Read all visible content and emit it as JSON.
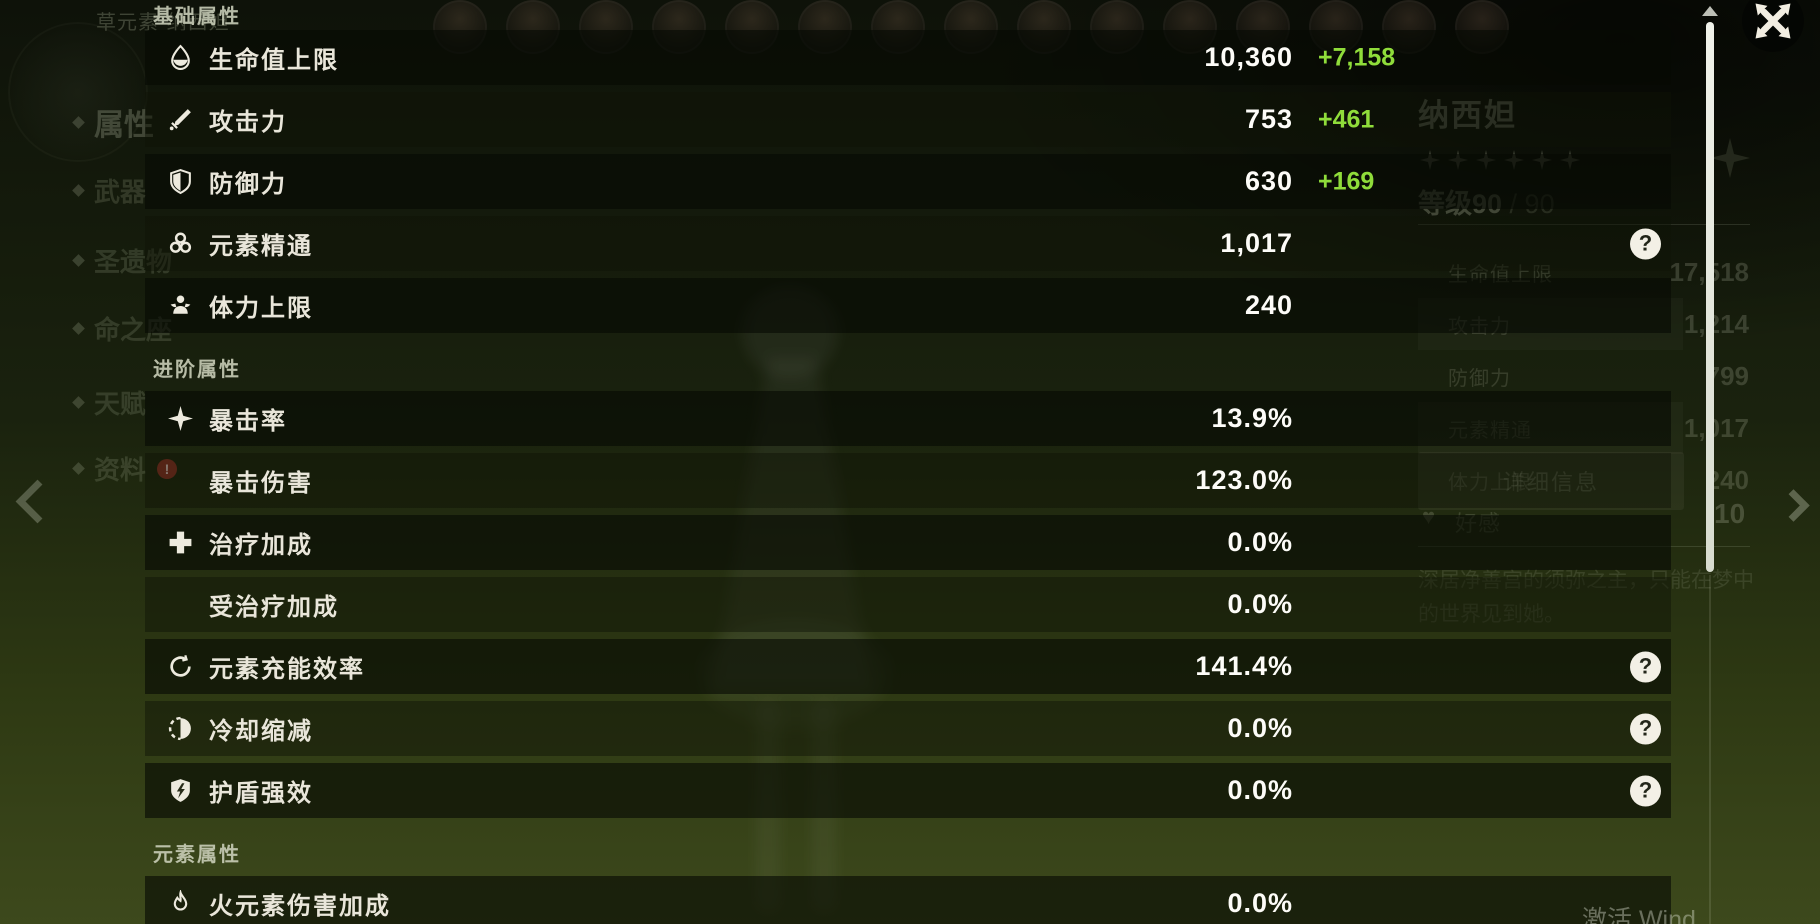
{
  "window": {
    "watermark": "激活 Wind"
  },
  "colors": {
    "bonus_green": "#8fdc3a"
  },
  "attributes_panel": {
    "sections": [
      {
        "title": "基础属性",
        "rows": [
          {
            "icon": "hp-icon",
            "label": "生命值上限",
            "value": "10,360",
            "bonus": "+7,158"
          },
          {
            "icon": "atk-icon",
            "label": "攻击力",
            "value": "753",
            "bonus": "+461"
          },
          {
            "icon": "def-icon",
            "label": "防御力",
            "value": "630",
            "bonus": "+169"
          },
          {
            "icon": "elemental-mastery-icon",
            "label": "元素精通",
            "value": "1,017",
            "help": true
          },
          {
            "icon": "stamina-icon",
            "label": "体力上限",
            "value": "240"
          }
        ]
      },
      {
        "title": "进阶属性",
        "rows": [
          {
            "icon": "crit-rate-icon",
            "label": "暴击率",
            "value": "13.9%"
          },
          {
            "icon": null,
            "label": "暴击伤害",
            "value": "123.0%"
          },
          {
            "icon": "healing-bonus-icon",
            "label": "治疗加成",
            "value": "0.0%"
          },
          {
            "icon": null,
            "label": "受治疗加成",
            "value": "0.0%"
          },
          {
            "icon": "energy-recharge-icon",
            "label": "元素充能效率",
            "value": "141.4%",
            "help": true
          },
          {
            "icon": "cooldown-reduction-icon",
            "label": "冷却缩减",
            "value": "0.0%",
            "help": true
          },
          {
            "icon": "shield-strength-icon",
            "label": "护盾强效",
            "value": "0.0%",
            "help": true
          }
        ]
      },
      {
        "title": "元素属性",
        "rows": [
          {
            "icon": "pyro-dmg-icon",
            "label": "火元素伤害加成",
            "value": "0.0%"
          }
        ]
      }
    ]
  },
  "background": {
    "character_tag": "草元素·纳西妲",
    "party_avatar_count": 15,
    "sidebar_items": [
      {
        "label": "属性",
        "selected": true
      },
      {
        "label": "武器"
      },
      {
        "label": "圣遗物"
      },
      {
        "label": "命之座"
      },
      {
        "label": "天赋"
      },
      {
        "label": "资料",
        "badge": "!"
      }
    ],
    "info_panel": {
      "name": "纳西妲",
      "star_count": 6,
      "level": "等级90",
      "level_max": " / 90",
      "stats": [
        {
          "label": "生命值上限",
          "value": "17,518"
        },
        {
          "label": "攻击力",
          "value": "1,214"
        },
        {
          "label": "防御力",
          "value": "799"
        },
        {
          "label": "元素精通",
          "value": "1,017"
        },
        {
          "label": "体力上限",
          "value": "240"
        }
      ],
      "details_button": "详细信息",
      "friendship_label": "好感",
      "friendship_value": "10",
      "friendship_icon": "♥",
      "description": "深居净善宫的须弥之主，只能在梦中的世界见到她。"
    }
  }
}
